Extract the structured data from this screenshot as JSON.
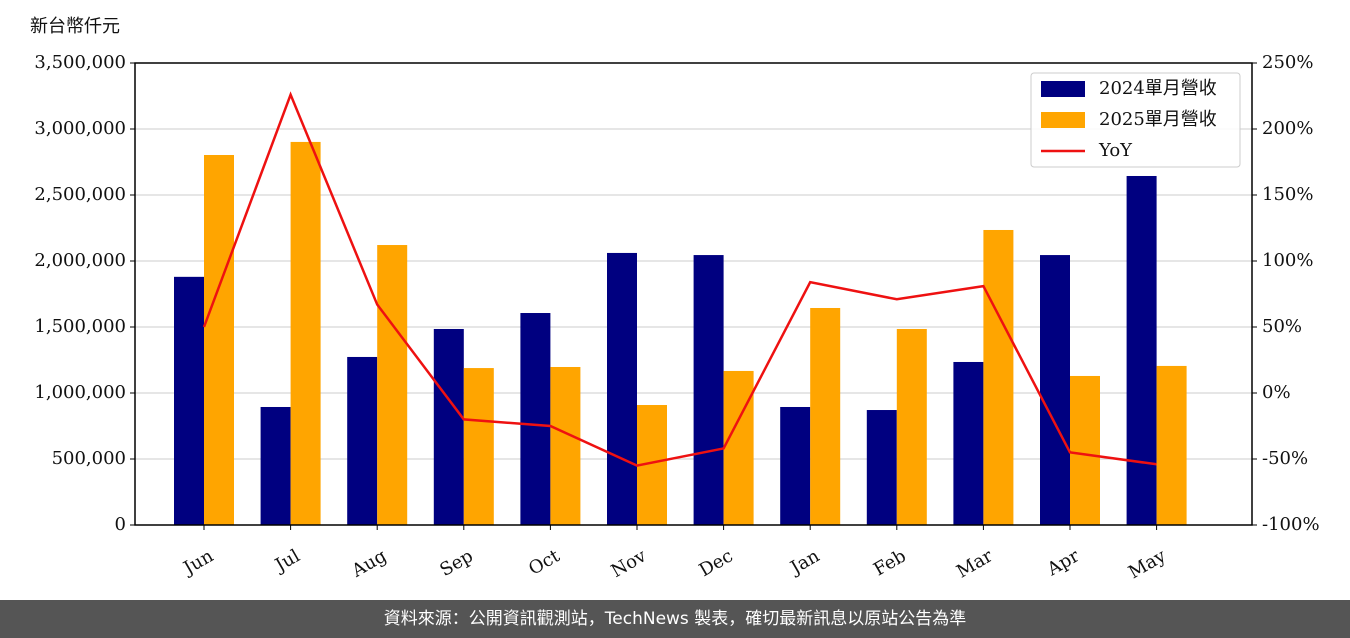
{
  "chart_data": {
    "type": "bar-line",
    "y_label": "新台幣仟元",
    "categories": [
      "Jun",
      "Jul",
      "Aug",
      "Sep",
      "Oct",
      "Nov",
      "Dec",
      "Jan",
      "Feb",
      "Mar",
      "Apr",
      "May"
    ],
    "series": [
      {
        "name": "2024單月營收",
        "color": "#000080",
        "type": "bar",
        "values": [
          1880000,
          894000,
          1273000,
          1485000,
          1606000,
          2061000,
          2045000,
          894000,
          871000,
          1235000,
          2045000,
          2644000
        ]
      },
      {
        "name": "2025單月營收",
        "color": "#ffa500",
        "type": "bar",
        "values": [
          2803000,
          2902000,
          2121000,
          1189000,
          1197000,
          909000,
          1167000,
          1644000,
          1485000,
          2235000,
          1129000,
          1205000
        ]
      },
      {
        "name": "YoY",
        "color": "#ee1111",
        "type": "line",
        "axis": "y2",
        "values": [
          50,
          226,
          67,
          -20,
          -25,
          -55,
          -42,
          84,
          71,
          81,
          -45,
          -54
        ]
      }
    ],
    "ylim": [
      0,
      3500000
    ],
    "yticks": [
      0,
      {
        "value": 500000,
        "label": "500,000"
      },
      {
        "value": 1000000,
        "label": "1,000,000"
      },
      {
        "value": 1500000,
        "label": "1,500,000"
      },
      {
        "value": 2000000,
        "label": "2,000,000"
      },
      {
        "value": 2500000,
        "label": "2,500,000"
      },
      {
        "value": 3000000,
        "label": "3,000,000"
      },
      {
        "value": 3500000,
        "label": "3,500,000"
      }
    ],
    "y2lim": [
      -100,
      250
    ],
    "y2ticks": [
      {
        "value": -100,
        "label": "-100%"
      },
      {
        "value": -50,
        "label": "-50%"
      },
      {
        "value": 0,
        "label": "0%"
      },
      {
        "value": 50,
        "label": "50%"
      },
      {
        "value": 100,
        "label": "100%"
      },
      {
        "value": 150,
        "label": "150%"
      },
      {
        "value": 200,
        "label": "200%"
      },
      {
        "value": 250,
        "label": "250%"
      }
    ],
    "grid": true,
    "legend": "upper right"
  },
  "footer": "資料來源：公開資訊觀測站，TechNews 製表，確切最新訊息以原站公告為準"
}
